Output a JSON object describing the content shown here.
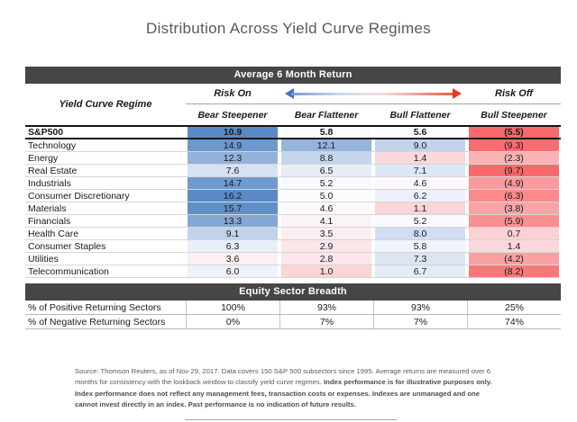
{
  "title": "Distribution Across Yield Curve Regimes",
  "table": {
    "header_bar": "Average 6 Month Return",
    "regime_label": "Yield Curve Regime",
    "risk_on": "Risk On",
    "risk_off": "Risk Off",
    "columns": [
      "Bear Steepener",
      "Bear Flattener",
      "Bull Flattener",
      "Bull Steepener"
    ],
    "rows": [
      {
        "label": "S&P500",
        "bold": true,
        "values": [
          "10.9",
          "5.8",
          "5.6",
          "(5.5)"
        ],
        "colors": [
          "#5A8AC6",
          "#FAFBFE",
          "#FCFBFE",
          "#F8696B"
        ]
      },
      {
        "label": "Technology",
        "bold": false,
        "values": [
          "14.9",
          "12.1",
          "9.0",
          "(9.3)"
        ],
        "colors": [
          "#6D97CD",
          "#95B4DB",
          "#C2D3EB",
          "#F86D6F"
        ]
      },
      {
        "label": "Energy",
        "bold": false,
        "values": [
          "12.3",
          "8.8",
          "1.4",
          "(2.3)"
        ],
        "colors": [
          "#92B2DA",
          "#C5D5EC",
          "#FBD8DB",
          "#FAB3B5"
        ]
      },
      {
        "label": "Real Estate",
        "bold": false,
        "values": [
          "7.6",
          "6.5",
          "7.1",
          "(9.7)"
        ],
        "colors": [
          "#D6E2F2",
          "#E6EDF7",
          "#DEE7F4",
          "#F8696B"
        ]
      },
      {
        "label": "Industrials",
        "bold": false,
        "values": [
          "14.7",
          "5.2",
          "4.6",
          "(4.9)"
        ],
        "colors": [
          "#7099CE",
          "#F9FAFE",
          "#FCF8FB",
          "#F99A9B"
        ]
      },
      {
        "label": "Consumer Discretionary",
        "bold": false,
        "values": [
          "16.2",
          "5.0",
          "6.2",
          "(6.3)"
        ],
        "colors": [
          "#5A8AC6",
          "#FCFCFF",
          "#EBF0F9",
          "#F98B8D"
        ]
      },
      {
        "label": "Materials",
        "bold": false,
        "values": [
          "15.7",
          "4.6",
          "1.1",
          "(3.8)"
        ],
        "colors": [
          "#618FC9",
          "#FCF8FB",
          "#FBD5D8",
          "#FAA4A6"
        ]
      },
      {
        "label": "Financials",
        "bold": false,
        "values": [
          "13.3",
          "4.1",
          "5.2",
          "(5.9)"
        ],
        "colors": [
          "#84A8D5",
          "#FCF3F6",
          "#F9FAFE",
          "#F98F91"
        ]
      },
      {
        "label": "Health Care",
        "bold": false,
        "values": [
          "9.1",
          "3.5",
          "8.0",
          "0.7"
        ],
        "colors": [
          "#C1D2EA",
          "#FCEDF0",
          "#D1DDF0",
          "#FBD1D4"
        ]
      },
      {
        "label": "Consumer Staples",
        "bold": false,
        "values": [
          "6.3",
          "2.9",
          "5.8",
          "1.4"
        ],
        "colors": [
          "#E9EFF8",
          "#FBE7EA",
          "#F0F4FB",
          "#FBD8DB"
        ]
      },
      {
        "label": "Utilities",
        "bold": false,
        "values": [
          "3.6",
          "2.8",
          "7.3",
          "(4.2)"
        ],
        "colors": [
          "#FCEEF1",
          "#FBE6E9",
          "#DBE5F3",
          "#FAA0A2"
        ]
      },
      {
        "label": "Telecommunication",
        "bold": false,
        "values": [
          "6.0",
          "1.0",
          "6.7",
          "(8.2)"
        ],
        "colors": [
          "#EEF2FA",
          "#FBD4D7",
          "#E3EBF6",
          "#F8787A"
        ]
      }
    ]
  },
  "breadth": {
    "header_bar": "Equity Sector Breadth",
    "rows": [
      {
        "label": "% of Positive Returning Sectors",
        "values": [
          "100%",
          "93%",
          "93%",
          "25%"
        ]
      },
      {
        "label": "% of Negative Returning Sectors",
        "values": [
          "0%",
          "7%",
          "7%",
          "74%"
        ]
      }
    ]
  },
  "footer": {
    "normal": "Source: Thomson Reuters, as of Nov 29, 2017. Data covers 150 S&P 500 subsectors since 1995. Average returns are measured over 6 months for consistency with the lookback window to classify yield curve regimes. ",
    "bold": "Index performance is for illustrative purposes only. Index performance does not reflect any management fees, transaction costs or expenses. Indexes are unmanaged and one cannot invest directly in an index. Past performance is no indication of future results."
  },
  "colors": {
    "bar_background": "#464646",
    "scale_max_blue": "#5A8AC6",
    "scale_mid_white": "#FCFCFF",
    "scale_min_red": "#F8696B",
    "arrow_blue": "#4472C4",
    "arrow_red": "#E03B24",
    "title_gray": "#58595B"
  },
  "chart_data": {
    "type": "heatmap",
    "title": "Distribution Across Yield Curve Regimes",
    "subtitle": "Average 6 Month Return",
    "columns": [
      "Bear Steepener",
      "Bear Flattener",
      "Bull Flattener",
      "Bull Steepener"
    ],
    "rows": [
      "S&P500",
      "Technology",
      "Energy",
      "Real Estate",
      "Industrials",
      "Consumer Discretionary",
      "Materials",
      "Financials",
      "Health Care",
      "Consumer Staples",
      "Utilities",
      "Telecommunication"
    ],
    "values": [
      [
        10.9,
        5.8,
        5.6,
        -5.5
      ],
      [
        14.9,
        12.1,
        9.0,
        -9.3
      ],
      [
        12.3,
        8.8,
        1.4,
        -2.3
      ],
      [
        7.6,
        6.5,
        7.1,
        -9.7
      ],
      [
        14.7,
        5.2,
        4.6,
        -4.9
      ],
      [
        16.2,
        5.0,
        6.2,
        -6.3
      ],
      [
        15.7,
        4.6,
        1.1,
        -3.8
      ],
      [
        13.3,
        4.1,
        5.2,
        -5.9
      ],
      [
        9.1,
        3.5,
        8.0,
        0.7
      ],
      [
        6.3,
        2.9,
        5.8,
        1.4
      ],
      [
        3.6,
        2.8,
        7.3,
        -4.2
      ],
      [
        6.0,
        1.0,
        6.7,
        -8.2
      ]
    ],
    "breadth_table": {
      "title": "Equity Sector Breadth",
      "positive_returning_pct": [
        100,
        93,
        93,
        25
      ],
      "negative_returning_pct": [
        0,
        7,
        7,
        74
      ]
    },
    "color_scale": {
      "min": "#F8696B",
      "mid": "#FCFCFF",
      "max": "#5A8AC6"
    },
    "legend": {
      "left": "Risk On",
      "right": "Risk Off"
    }
  }
}
